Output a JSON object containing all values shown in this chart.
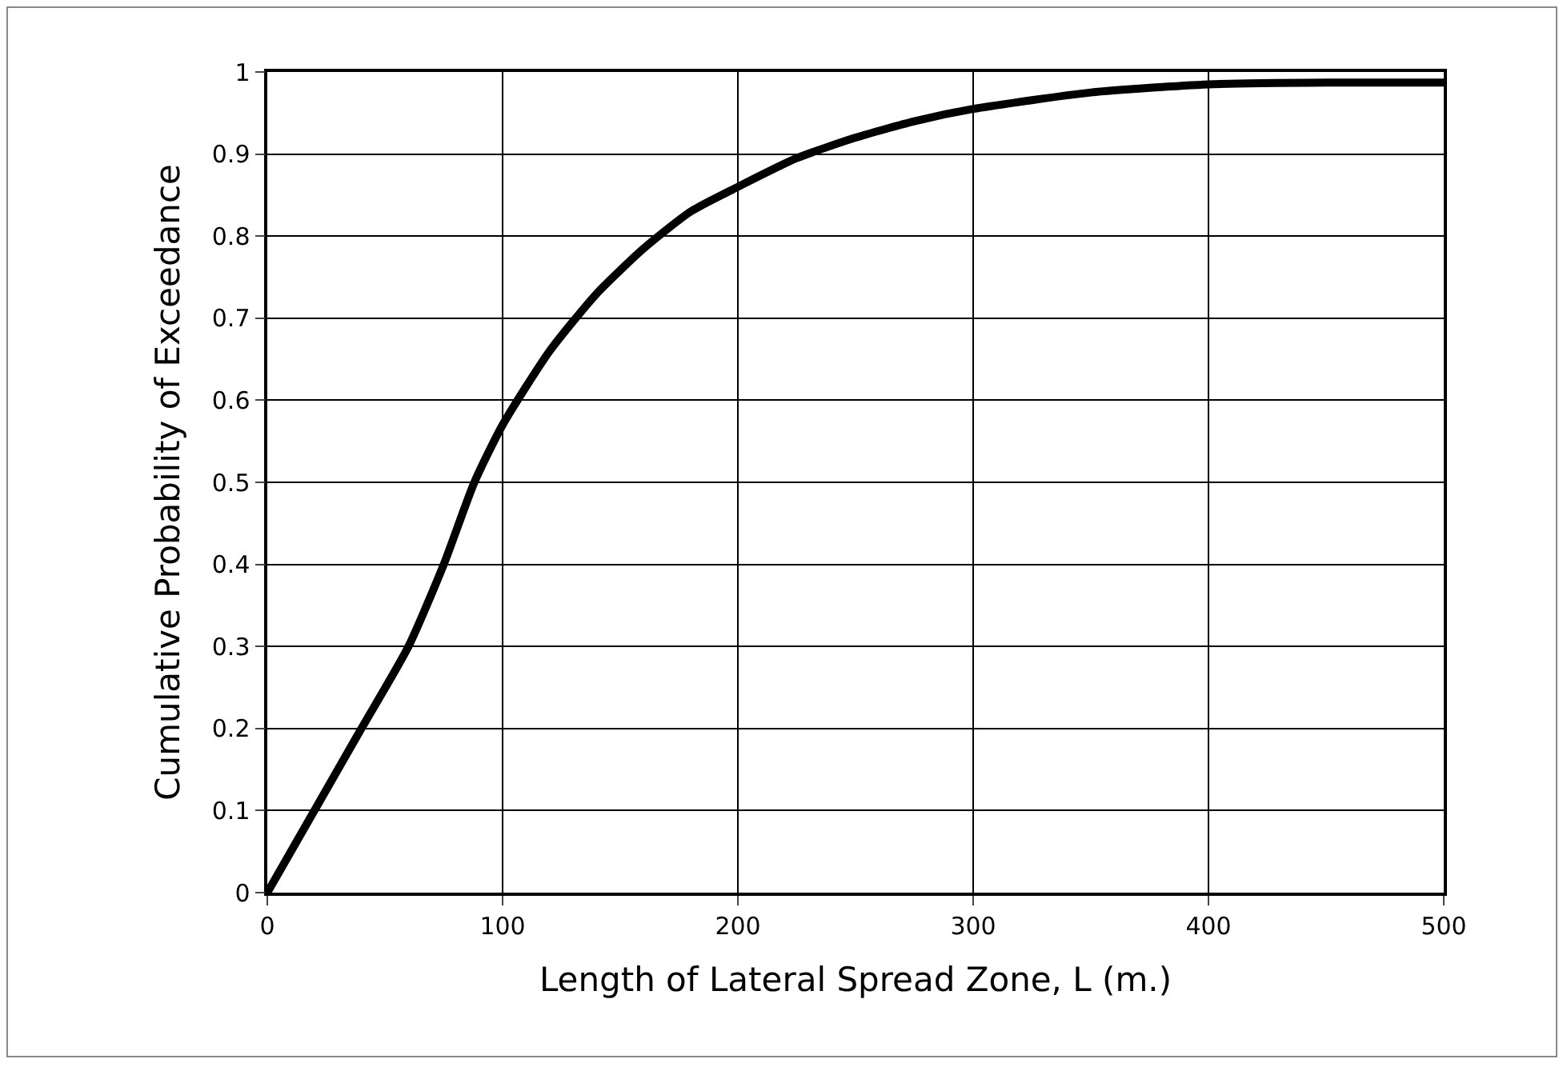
{
  "chart_data": {
    "type": "line",
    "xlabel": "Length of Lateral Spread Zone, L (m.)",
    "ylabel": "Cumulative Probability of Exceedance",
    "x": [
      0,
      10,
      20,
      40,
      60,
      75,
      88,
      100,
      120,
      140,
      160,
      180,
      200,
      225,
      250,
      275,
      300,
      350,
      400,
      450,
      500
    ],
    "series": [
      {
        "color": "#000000",
        "values": [
          0,
          0.05,
          0.1,
          0.2,
          0.3,
          0.4,
          0.5,
          0.57,
          0.66,
          0.73,
          0.785,
          0.83,
          0.86,
          0.895,
          0.92,
          0.94,
          0.955,
          0.975,
          0.985,
          0.987,
          0.987
        ]
      }
    ],
    "xlim": [
      0,
      500
    ],
    "xticks": [
      0,
      100,
      200,
      300,
      400,
      500
    ],
    "ylim": [
      0,
      1
    ],
    "yticks": [
      0,
      0.1,
      0.2,
      0.3,
      0.4,
      0.5,
      0.6,
      0.7,
      0.8,
      0.9,
      1
    ],
    "grid": true,
    "marker": "none",
    "line_style": "solid"
  }
}
